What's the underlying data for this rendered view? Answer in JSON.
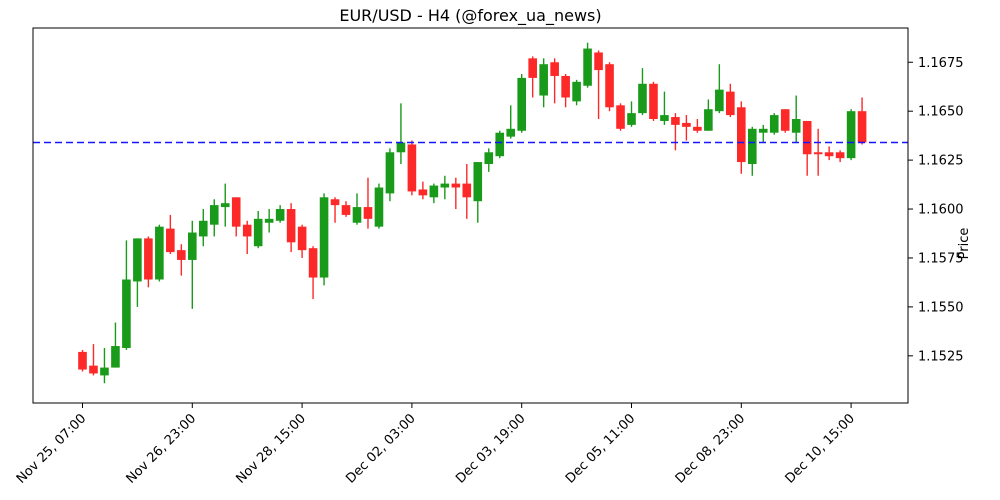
{
  "chart_data": {
    "type": "candlestick",
    "title": "EUR/USD - H4 (@forex_ua_news)",
    "ylabel": "Price",
    "xlabel": "",
    "grid": false,
    "legend": "none",
    "ylim": [
      1.15009,
      1.16925
    ],
    "y_ticks": [
      1.1525,
      1.155,
      1.1575,
      1.16,
      1.1625,
      1.165,
      1.1675
    ],
    "y_tick_labels": [
      "1.1525",
      "1.1550",
      "1.1575",
      "1.1600",
      "1.1625",
      "1.1650",
      "1.1675"
    ],
    "x_ticks": [
      {
        "index": 0,
        "label": "Nov 25, 07:00"
      },
      {
        "index": 10,
        "label": "Nov 26, 23:00"
      },
      {
        "index": 20,
        "label": "Nov 28, 15:00"
      },
      {
        "index": 30,
        "label": "Dec 02, 03:00"
      },
      {
        "index": 40,
        "label": "Dec 03, 19:00"
      },
      {
        "index": 50,
        "label": "Dec 05, 11:00"
      },
      {
        "index": 60,
        "label": "Dec 08, 23:00"
      },
      {
        "index": 70,
        "label": "Dec 10, 15:00"
      }
    ],
    "hline": {
      "value": 1.1634,
      "color": "#1515ff",
      "style": "dashed"
    },
    "up_color": "#1a9a1a",
    "down_color": "#fd2828",
    "candles_format": [
      "open",
      "high",
      "low",
      "close"
    ],
    "candles": [
      [
        1.1527,
        1.1528,
        1.1517,
        1.1518
      ],
      [
        1.152,
        1.1531,
        1.1515,
        1.1516
      ],
      [
        1.1515,
        1.1529,
        1.1511,
        1.1519
      ],
      [
        1.1519,
        1.1542,
        1.1519,
        1.153
      ],
      [
        1.1529,
        1.1584,
        1.1528,
        1.1564
      ],
      [
        1.1563,
        1.1585,
        1.155,
        1.1585
      ],
      [
        1.1585,
        1.1586,
        1.156,
        1.1564
      ],
      [
        1.1564,
        1.1592,
        1.1563,
        1.1591
      ],
      [
        1.159,
        1.1597,
        1.1577,
        1.1578
      ],
      [
        1.1579,
        1.1582,
        1.1566,
        1.1574
      ],
      [
        1.1574,
        1.1594,
        1.1549,
        1.1588
      ],
      [
        1.1586,
        1.16,
        1.1581,
        1.1594
      ],
      [
        1.1592,
        1.1605,
        1.1586,
        1.1602
      ],
      [
        1.1601,
        1.1613,
        1.1591,
        1.1603
      ],
      [
        1.1606,
        1.1606,
        1.1586,
        1.1591
      ],
      [
        1.1592,
        1.1594,
        1.1577,
        1.1586
      ],
      [
        1.1581,
        1.1599,
        1.158,
        1.1595
      ],
      [
        1.1593,
        1.16,
        1.1588,
        1.1595
      ],
      [
        1.1594,
        1.1602,
        1.1593,
        1.16
      ],
      [
        1.16,
        1.1603,
        1.1578,
        1.1583
      ],
      [
        1.1591,
        1.1592,
        1.1575,
        1.1579
      ],
      [
        1.158,
        1.1581,
        1.1554,
        1.1565
      ],
      [
        1.1565,
        1.1608,
        1.1561,
        1.1606
      ],
      [
        1.1605,
        1.1606,
        1.1593,
        1.1602
      ],
      [
        1.1602,
        1.1604,
        1.1596,
        1.1597
      ],
      [
        1.1593,
        1.1608,
        1.1592,
        1.1601
      ],
      [
        1.1601,
        1.1616,
        1.159,
        1.1595
      ],
      [
        1.1591,
        1.1613,
        1.159,
        1.1611
      ],
      [
        1.1608,
        1.1631,
        1.1604,
        1.1629
      ],
      [
        1.1629,
        1.1654,
        1.1623,
        1.1634
      ],
      [
        1.1633,
        1.1635,
        1.1607,
        1.1609
      ],
      [
        1.161,
        1.1614,
        1.1605,
        1.1607
      ],
      [
        1.1606,
        1.1613,
        1.1603,
        1.1612
      ],
      [
        1.1611,
        1.1617,
        1.1605,
        1.1613
      ],
      [
        1.1613,
        1.1616,
        1.16,
        1.1611
      ],
      [
        1.1613,
        1.1623,
        1.1595,
        1.1606
      ],
      [
        1.1604,
        1.1624,
        1.1593,
        1.1624
      ],
      [
        1.1623,
        1.1631,
        1.1619,
        1.1629
      ],
      [
        1.1627,
        1.164,
        1.1626,
        1.1639
      ],
      [
        1.1637,
        1.1653,
        1.1636,
        1.1641
      ],
      [
        1.164,
        1.1669,
        1.1639,
        1.1667
      ],
      [
        1.1677,
        1.1678,
        1.1657,
        1.1667
      ],
      [
        1.1658,
        1.1677,
        1.1652,
        1.1674
      ],
      [
        1.1675,
        1.1677,
        1.1654,
        1.1668
      ],
      [
        1.1668,
        1.1669,
        1.1652,
        1.1657
      ],
      [
        1.1655,
        1.1666,
        1.1653,
        1.1665
      ],
      [
        1.1663,
        1.1685,
        1.1662,
        1.1682
      ],
      [
        1.168,
        1.1681,
        1.1646,
        1.1671
      ],
      [
        1.1674,
        1.1675,
        1.165,
        1.1652
      ],
      [
        1.1653,
        1.1654,
        1.164,
        1.1641
      ],
      [
        1.1643,
        1.1655,
        1.1642,
        1.1649
      ],
      [
        1.1649,
        1.1672,
        1.1648,
        1.1664
      ],
      [
        1.1664,
        1.1665,
        1.1645,
        1.1646
      ],
      [
        1.1645,
        1.166,
        1.1643,
        1.1648
      ],
      [
        1.1647,
        1.1649,
        1.163,
        1.1643
      ],
      [
        1.1644,
        1.1648,
        1.1635,
        1.1642
      ],
      [
        1.1642,
        1.1646,
        1.1639,
        1.164
      ],
      [
        1.164,
        1.1656,
        1.164,
        1.1651
      ],
      [
        1.165,
        1.1674,
        1.1649,
        1.1661
      ],
      [
        1.166,
        1.1664,
        1.1647,
        1.1648
      ],
      [
        1.1652,
        1.1655,
        1.1618,
        1.1624
      ],
      [
        1.1623,
        1.1642,
        1.1617,
        1.1641
      ],
      [
        1.1639,
        1.1643,
        1.1634,
        1.1641
      ],
      [
        1.1639,
        1.1649,
        1.1638,
        1.1648
      ],
      [
        1.1651,
        1.1651,
        1.1639,
        1.164
      ],
      [
        1.1639,
        1.1658,
        1.1634,
        1.1646
      ],
      [
        1.1645,
        1.1645,
        1.1617,
        1.1628
      ],
      [
        1.1629,
        1.1641,
        1.1617,
        1.1628
      ],
      [
        1.1629,
        1.1632,
        1.1625,
        1.1627
      ],
      [
        1.1629,
        1.163,
        1.1624,
        1.1626
      ],
      [
        1.1626,
        1.1651,
        1.1625,
        1.165
      ],
      [
        1.165,
        1.1657,
        1.1633,
        1.1634
      ]
    ]
  }
}
